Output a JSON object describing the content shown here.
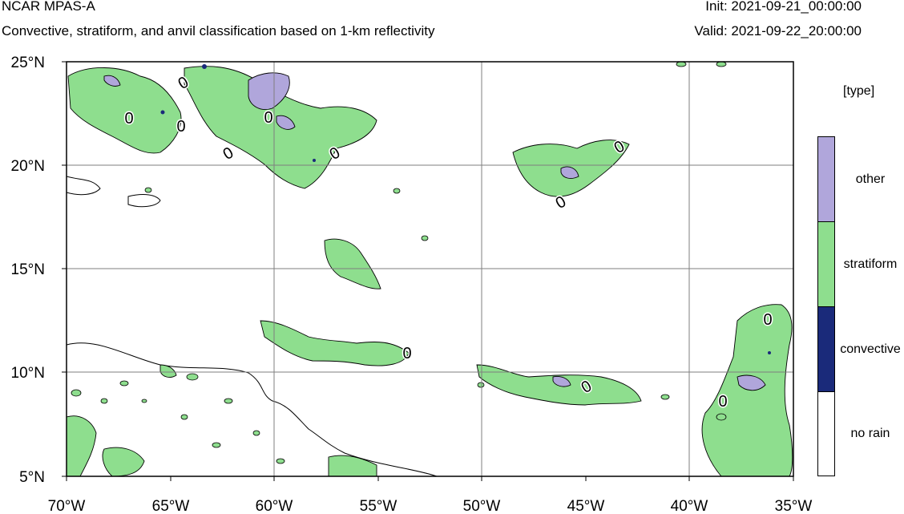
{
  "header": {
    "title": "NCAR MPAS-A",
    "subtitle": "Convective, stratiform, and anvil classification based on 1-km reflectivity",
    "init": "Init: 2021-09-21_00:00:00",
    "valid": "Valid: 2021-09-22_20:00:00"
  },
  "legend": {
    "title": "[type]",
    "items": [
      {
        "label": "other",
        "color": "#b0a6db"
      },
      {
        "label": "stratiform",
        "color": "#8ede8e"
      },
      {
        "label": "convective",
        "color": "#1a2a7a"
      },
      {
        "label": "no rain",
        "color": "#ffffff"
      }
    ]
  },
  "map": {
    "lon_range": [
      -70,
      -35
    ],
    "lat_range": [
      5,
      25
    ],
    "lon_ticks": [
      "70°W",
      "65°W",
      "60°W",
      "55°W",
      "50°W",
      "45°W",
      "40°W",
      "35°W"
    ],
    "lat_ticks": [
      "25°N",
      "20°N",
      "15°N",
      "10°N",
      "5°N"
    ],
    "contour_label": "0",
    "colors": {
      "stratiform": "#8ede8e",
      "other": "#b0a6db",
      "convective": "#1a2a7a"
    }
  }
}
